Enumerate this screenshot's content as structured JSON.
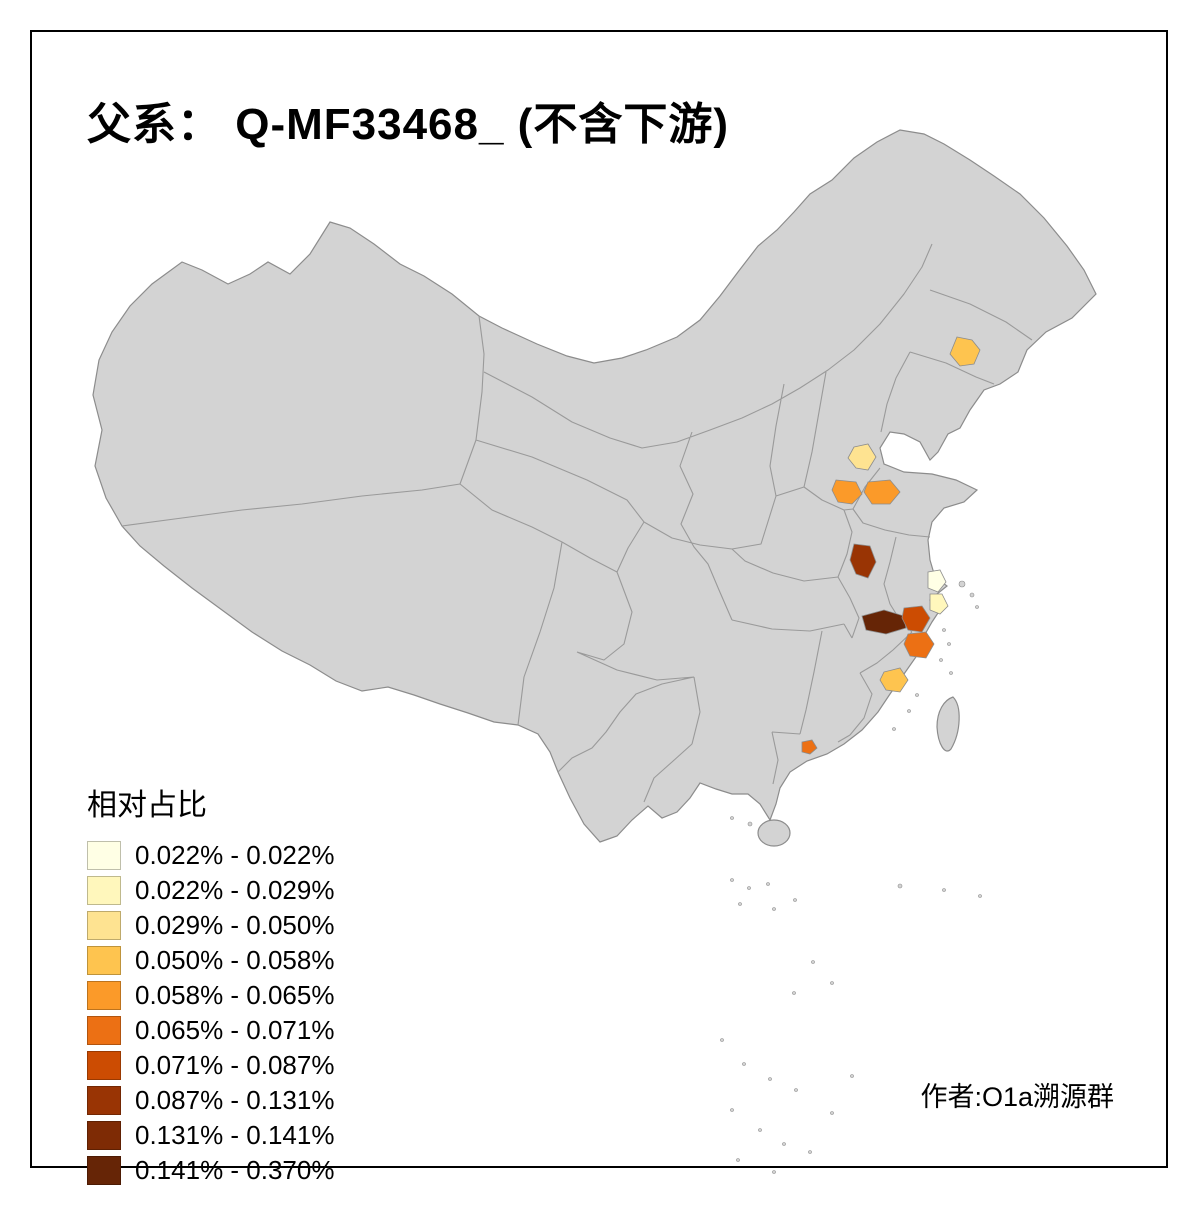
{
  "title": "父系： Q-MF33468_ (不含下游)",
  "author_credit": "作者:O1a溯源群",
  "legend": {
    "title": "相对占比",
    "bins": [
      {
        "label": "0.022% - 0.022%",
        "color": "#FFFFE5"
      },
      {
        "label": "0.022% - 0.029%",
        "color": "#FFF7BC"
      },
      {
        "label": "0.029% - 0.050%",
        "color": "#FEE391"
      },
      {
        "label": "0.050% - 0.058%",
        "color": "#FEC44F"
      },
      {
        "label": "0.058% - 0.065%",
        "color": "#FB9A29"
      },
      {
        "label": "0.065% - 0.071%",
        "color": "#EC7014"
      },
      {
        "label": "0.071% - 0.087%",
        "color": "#CC4C02"
      },
      {
        "label": "0.087% - 0.131%",
        "color": "#993404"
      },
      {
        "label": "0.131% - 0.141%",
        "color": "#7E2B05"
      },
      {
        "label": "0.141% - 0.370%",
        "color": "#662506"
      }
    ]
  },
  "map": {
    "land_color": "#d3d3d3",
    "border_color": "#9a9a9a",
    "outline_color": "#8c8c8c",
    "sea_color": "#ffffff",
    "frame_color": "#000000",
    "patches": [
      {
        "name": "northeast-liaoning",
        "color": "#FEC44F"
      },
      {
        "name": "shandong-north-pale",
        "color": "#FEE391"
      },
      {
        "name": "shandong-west-orange",
        "color": "#FB9A29"
      },
      {
        "name": "shandong-central-orange",
        "color": "#FB9A29"
      },
      {
        "name": "anhui-central-dark",
        "color": "#993404"
      },
      {
        "name": "anhui-south-darkest",
        "color": "#662506"
      },
      {
        "name": "zhejiang-northwest-brown",
        "color": "#CC4C02"
      },
      {
        "name": "coastal-pale-1",
        "color": "#FFFFE5"
      },
      {
        "name": "coastal-pale-2",
        "color": "#FFF7BC"
      },
      {
        "name": "zhejiang-central-orange",
        "color": "#EC7014"
      },
      {
        "name": "fujian-coast-yellow",
        "color": "#FEC44F"
      },
      {
        "name": "guangdong-small-orange",
        "color": "#EC7014"
      }
    ]
  }
}
